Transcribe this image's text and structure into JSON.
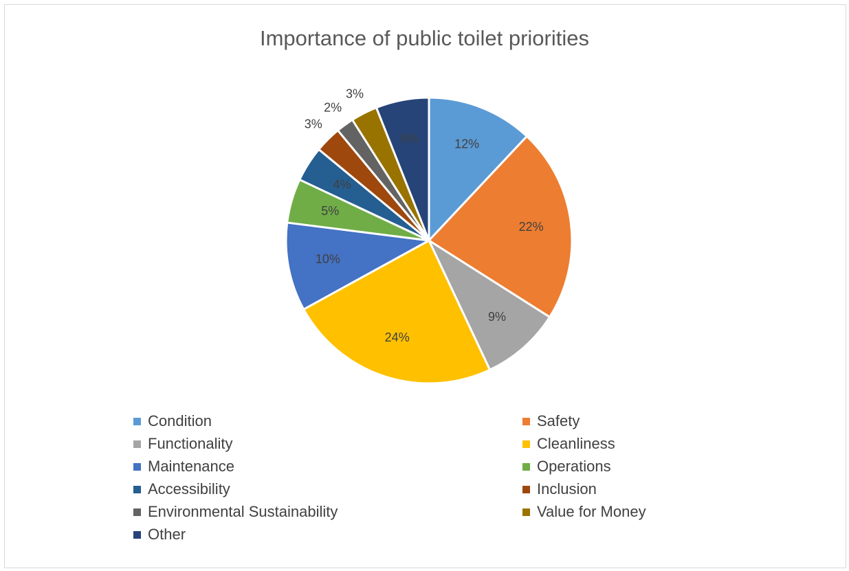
{
  "chart_data": {
    "type": "pie",
    "title": "Importance of public toilet priorities",
    "categories": [
      "Condition",
      "Safety",
      "Functionality",
      "Cleanliness",
      "Maintenance",
      "Operations",
      "Accessibility",
      "Inclusion",
      "Environmental Sustainability",
      "Value for Money",
      "Other"
    ],
    "values": [
      12,
      22,
      9,
      24,
      10,
      5,
      4,
      3,
      2,
      3,
      6
    ],
    "data_labels": [
      "12%",
      "22%",
      "9%",
      "24%",
      "10%",
      "5%",
      "4%",
      "3%",
      "2%",
      "3%",
      "6%"
    ],
    "colors": [
      "#5b9bd5",
      "#ed7d31",
      "#a5a5a5",
      "#ffc000",
      "#4472c4",
      "#70ad47",
      "#255e91",
      "#9e480e",
      "#636363",
      "#997300",
      "#264478"
    ],
    "legend_position": "bottom",
    "start_angle": "top, clockwise"
  }
}
